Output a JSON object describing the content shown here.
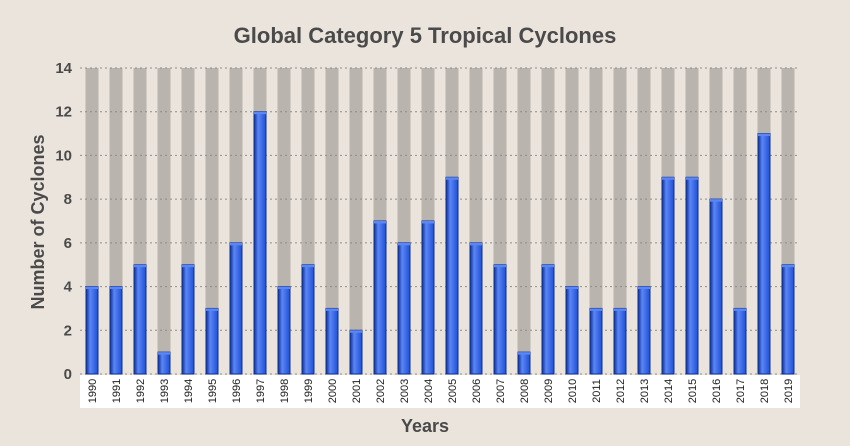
{
  "chart_data": {
    "type": "bar",
    "title": "Global Category 5 Tropical Cyclones",
    "xlabel": "Years",
    "ylabel": "Number of Cyclones",
    "ylim": [
      0,
      14
    ],
    "yticks": [
      0,
      2,
      4,
      6,
      8,
      10,
      12,
      14
    ],
    "grid": true,
    "categories": [
      "1990",
      "1991",
      "1992",
      "1993",
      "1994",
      "1995",
      "1996",
      "1997",
      "1998",
      "1999",
      "2000",
      "2001",
      "2002",
      "2003",
      "2004",
      "2005",
      "2006",
      "2007",
      "2008",
      "2009",
      "2010",
      "2011",
      "2012",
      "2013",
      "2014",
      "2015",
      "2016",
      "2017",
      "2018",
      "2019"
    ],
    "values": [
      4,
      4,
      5,
      1,
      5,
      3,
      6,
      12,
      4,
      5,
      3,
      2,
      7,
      6,
      7,
      9,
      6,
      5,
      1,
      5,
      4,
      3,
      3,
      4,
      9,
      9,
      8,
      3,
      11,
      5
    ],
    "colors": {
      "bar": "#1f4fd6",
      "bar_light": "#5b86f5",
      "bar_dark": "#0d2f8f",
      "column_bg": "#b9b4ae",
      "background": "#ebe4dc",
      "grid": "#8c8c8c",
      "text": "#4a4a4a"
    }
  }
}
